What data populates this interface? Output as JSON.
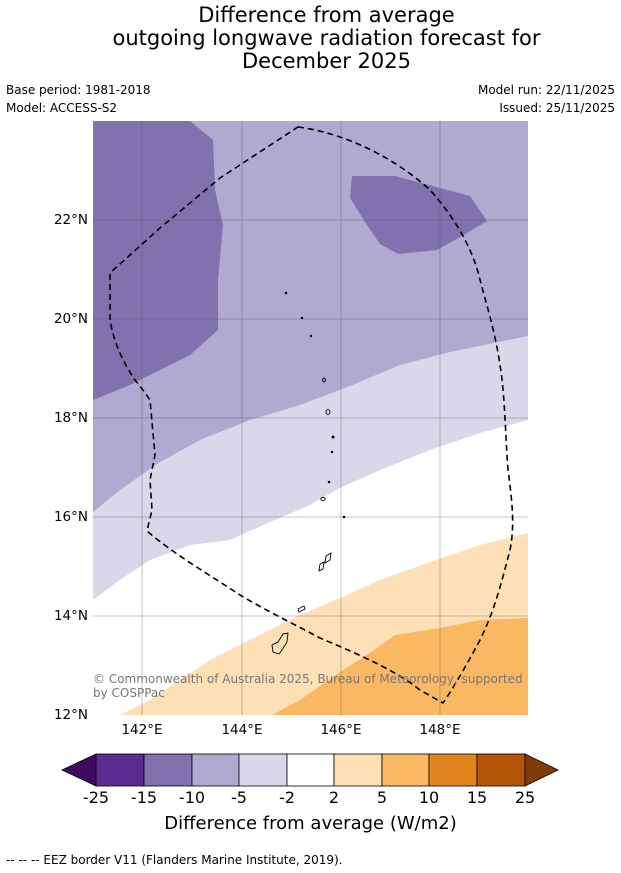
{
  "title": {
    "line1": "Difference from average",
    "line2": "outgoing longwave radiation forecast for",
    "line3": "December 2025"
  },
  "meta": {
    "base_period": "Base period: 1981-2018",
    "model": "Model: ACCESS-S2",
    "model_run": "Model run: 22/11/2025",
    "issued": "Issued: 25/11/2025"
  },
  "map": {
    "lat_labels": [
      "22°N",
      "20°N",
      "18°N",
      "16°N",
      "14°N",
      "12°N"
    ],
    "lon_labels": [
      "142°E",
      "144°E",
      "146°E",
      "148°E"
    ],
    "copyright": "© Commonwealth of Australia 2025, Bureau of Meteorology, supported by COSPPac",
    "colors": {
      "m15": "#7f72ad",
      "m10": "#b0a9d0",
      "m5": "#d8d8ea",
      "zero": "#ffffff",
      "p2": "#fde0b6",
      "p5": "#fbb862"
    }
  },
  "colorbar": {
    "ticks": [
      "-25",
      "-15",
      "-10",
      "-5",
      "-2",
      "2",
      "5",
      "10",
      "15",
      "25"
    ],
    "colors": [
      "#5b2b8f",
      "#7f72ad",
      "#b0a9d0",
      "#d8d8ea",
      "#ffffff",
      "#fde0b6",
      "#fbb862",
      "#e1841c",
      "#b35707"
    ],
    "extend_low_color": "#3d0c60",
    "extend_high_color": "#7f3b08",
    "label": "Difference from average (W/m2)"
  },
  "footnote": "--  --  -- EEZ border V11 (Flanders Marine Institute, 2019)."
}
